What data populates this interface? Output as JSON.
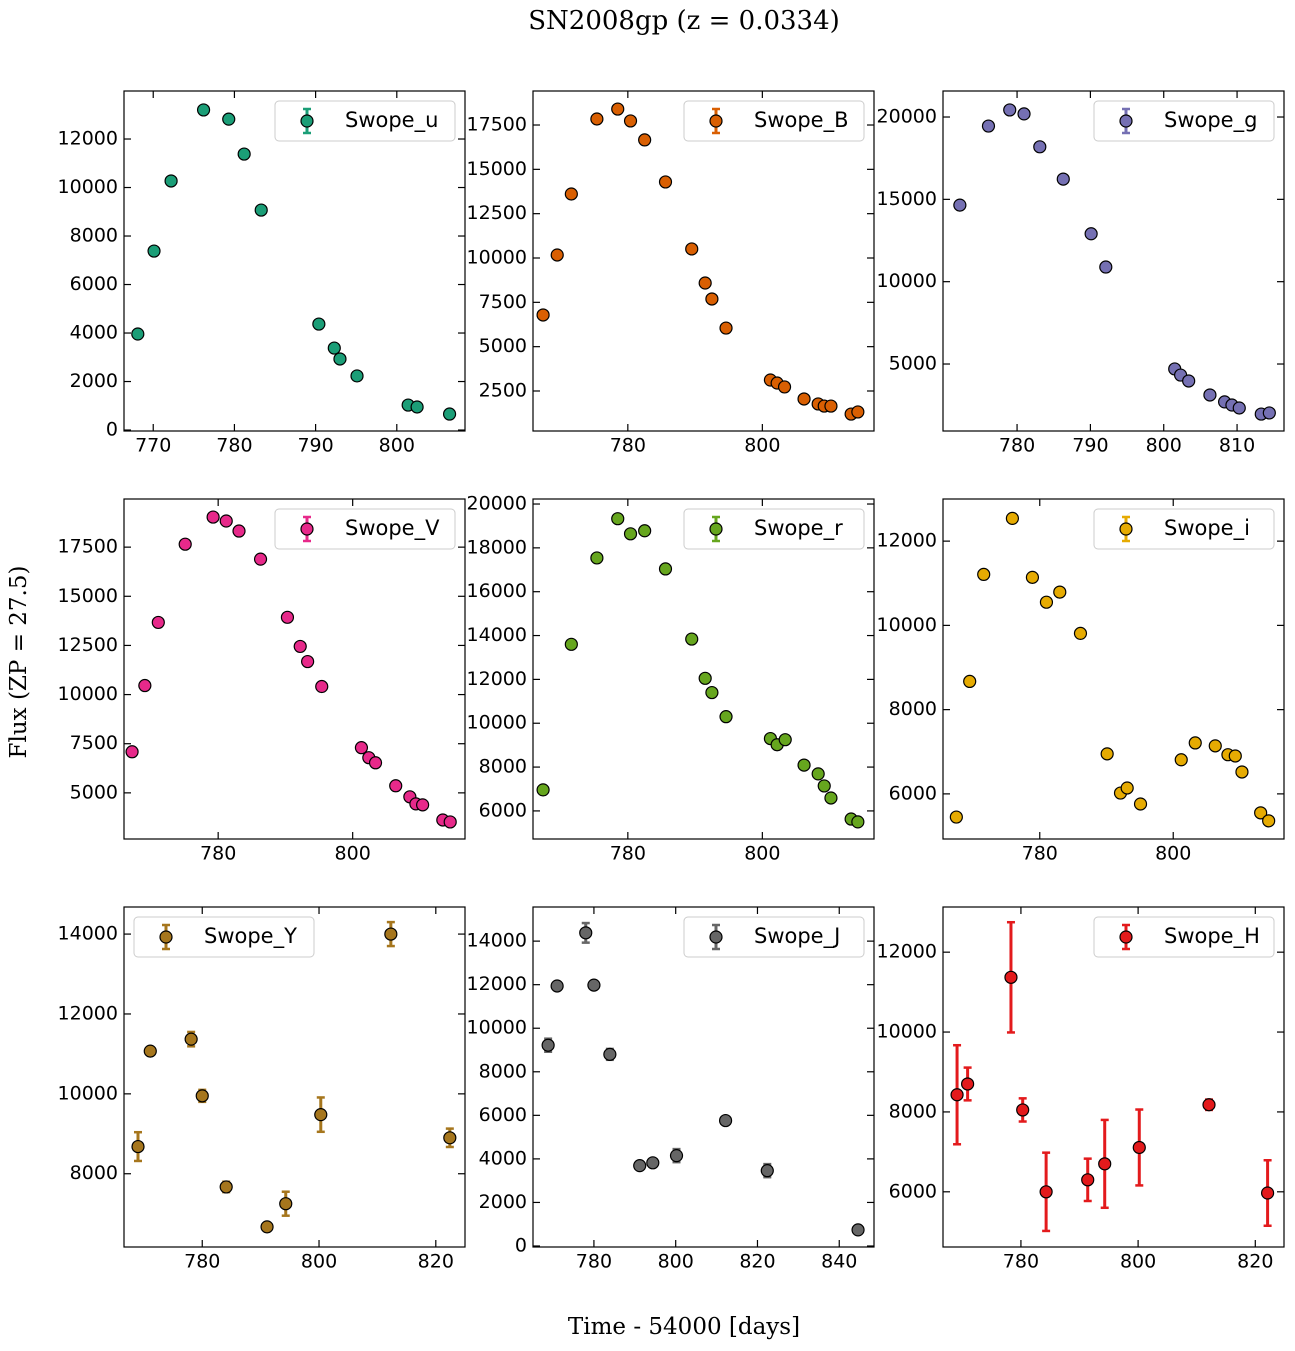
{
  "title": "SN2008gp (z = 0.0334)",
  "xlabel": "Time - 54000 [days]",
  "ylabel": "Flux (ZP = 27.5)",
  "chart_data": [
    {
      "type": "scatter",
      "xlim": [
        766.4,
        808.4
      ],
      "ylim": [
        -40,
        13980
      ],
      "xticks": [
        770,
        780,
        790,
        800
      ],
      "yticks": [
        0,
        2000,
        4000,
        6000,
        8000,
        10000,
        12000
      ],
      "legend": "upper right",
      "series": [
        {
          "name": "Swope_u",
          "color": "#1b9e77",
          "x": [
            768.1,
            770.1,
            772.2,
            776.2,
            779.3,
            781.2,
            783.3,
            790.4,
            792.3,
            793.0,
            795.1,
            801.4,
            802.5,
            806.5
          ],
          "values": [
            3960,
            7380,
            10270,
            13200,
            12820,
            11380,
            9070,
            4370,
            3380,
            2930,
            2230,
            1030,
            950,
            660
          ]
        }
      ]
    },
    {
      "type": "scatter",
      "xlim": [
        765.9,
        816.6
      ],
      "ylim": [
        244,
        19418
      ],
      "xticks": [
        780,
        800
      ],
      "yticks": [
        2500,
        5000,
        7500,
        10000,
        12500,
        15000,
        17500
      ],
      "legend": "upper right",
      "series": [
        {
          "name": "Swope_B",
          "color": "#d95f02",
          "x": [
            767.4,
            769.5,
            771.6,
            775.4,
            778.5,
            780.4,
            782.5,
            785.6,
            789.5,
            791.5,
            792.5,
            794.6,
            801.2,
            802.2,
            803.3,
            806.2,
            808.3,
            809.2,
            810.2,
            813.2,
            814.2
          ],
          "values": [
            6787,
            10170,
            13610,
            17840,
            18400,
            17730,
            16660,
            14290,
            10510,
            8590,
            7690,
            6050,
            3120,
            2950,
            2730,
            2050,
            1770,
            1650,
            1650,
            1200,
            1320
          ]
        }
      ]
    },
    {
      "type": "scatter",
      "xlim": [
        769.9,
        816.4
      ],
      "ylim": [
        932,
        21580
      ],
      "xticks": [
        780,
        790,
        800,
        810
      ],
      "yticks": [
        5000,
        10000,
        15000,
        20000
      ],
      "legend": "upper right",
      "series": [
        {
          "name": "Swope_g",
          "color": "#7570b3",
          "x": [
            772.2,
            776.1,
            779.0,
            780.95,
            783.1,
            786.3,
            790.1,
            792.1,
            801.5,
            802.3,
            803.4,
            806.3,
            808.3,
            809.3,
            810.3,
            813.3,
            814.4
          ],
          "values": [
            14650,
            19450,
            20430,
            20190,
            18190,
            16230,
            12910,
            10890,
            4700,
            4330,
            3970,
            3120,
            2700,
            2510,
            2330,
            1960,
            2030
          ]
        }
      ]
    },
    {
      "type": "scatter",
      "xlim": [
        766.0,
        816.7
      ],
      "ylim": [
        2653,
        19949
      ],
      "xticks": [
        780,
        800
      ],
      "yticks": [
        5000,
        7500,
        10000,
        12500,
        15000,
        17500
      ],
      "legend": "upper right",
      "series": [
        {
          "name": "Swope_V",
          "color": "#e7298a",
          "x": [
            767.2,
            769.1,
            771.1,
            775.1,
            779.25,
            781.2,
            783.1,
            786.3,
            790.3,
            792.2,
            793.3,
            795.4,
            801.3,
            802.4,
            803.4,
            806.4,
            808.5,
            809.4,
            810.4,
            813.4,
            814.5
          ],
          "values": [
            7090,
            10460,
            13670,
            17650,
            19030,
            18830,
            18320,
            16890,
            13930,
            12450,
            11680,
            10410,
            7300,
            6790,
            6530,
            5360,
            4800,
            4440,
            4390,
            3620,
            3520
          ]
        }
      ]
    },
    {
      "type": "scatter",
      "xlim": [
        765.9,
        816.6
      ],
      "ylim": [
        4719,
        20229
      ],
      "xticks": [
        780,
        800
      ],
      "yticks": [
        6000,
        8000,
        10000,
        12000,
        14000,
        16000,
        18000,
        20000
      ],
      "legend": "upper right",
      "series": [
        {
          "name": "Swope_r",
          "color": "#66a61e",
          "x": [
            767.4,
            771.6,
            775.4,
            778.5,
            780.4,
            782.5,
            785.6,
            789.5,
            791.5,
            792.5,
            794.6,
            801.2,
            802.2,
            803.4,
            806.2,
            808.3,
            809.2,
            810.2,
            813.2,
            814.2
          ],
          "values": [
            6960,
            13600,
            17540,
            19330,
            18640,
            18780,
            17040,
            13840,
            12050,
            11400,
            10300,
            9300,
            9020,
            9250,
            8090,
            7690,
            7140,
            6590,
            5630,
            5500
          ]
        }
      ]
    },
    {
      "type": "scatter",
      "xlim": [
        765.5,
        816.6
      ],
      "ylim": [
        4929,
        13000
      ],
      "xticks": [
        780,
        800
      ],
      "yticks": [
        6000,
        8000,
        10000,
        12000
      ],
      "legend": "upper right",
      "series": [
        {
          "name": "Swope_i",
          "color": "#e6ab02",
          "x": [
            767.5,
            769.5,
            771.6,
            775.9,
            778.9,
            781.0,
            783.0,
            786.1,
            790.1,
            792.1,
            793.1,
            795.1,
            801.2,
            803.3,
            806.3,
            808.2,
            809.3,
            810.3,
            813.1,
            814.3
          ],
          "values": [
            5450,
            8670,
            11210,
            12540,
            11140,
            10550,
            10790,
            9810,
            6950,
            6020,
            6140,
            5760,
            6810,
            7210,
            7140,
            6930,
            6900,
            6520,
            5550,
            5360
          ]
        }
      ]
    },
    {
      "type": "scatter",
      "xlim": [
        766.6,
        825.0
      ],
      "ylim": [
        6166,
        14678
      ],
      "xticks": [
        780,
        800,
        820
      ],
      "yticks": [
        8000,
        10000,
        12000,
        14000
      ],
      "legend": "upper left",
      "series": [
        {
          "name": "Swope_Y",
          "color": "#a6761d",
          "x": [
            769.0,
            771.1,
            778.1,
            780.0,
            784.1,
            791.1,
            794.3,
            800.3,
            812.3,
            822.4
          ],
          "values": [
            8680,
            11070,
            11370,
            9950,
            7670,
            6670,
            7250,
            9480,
            14000,
            8900
          ],
          "errors": [
            360,
            50,
            180,
            150,
            130,
            50,
            300,
            430,
            300,
            230
          ]
        }
      ]
    },
    {
      "type": "scatter",
      "xlim": [
        765.1,
        848.5
      ],
      "ylim": [
        -46,
        15567
      ],
      "xticks": [
        780,
        800,
        820,
        840
      ],
      "yticks": [
        0,
        2000,
        4000,
        6000,
        8000,
        10000,
        12000,
        14000
      ],
      "legend": "upper right",
      "series": [
        {
          "name": "Swope_J",
          "color": "#666666",
          "x": [
            768.8,
            771.0,
            778.0,
            780.0,
            783.9,
            791.2,
            794.4,
            800.2,
            812.2,
            822.4,
            844.6
          ],
          "values": [
            9220,
            11940,
            14380,
            11980,
            8800,
            3690,
            3820,
            4150,
            5760,
            3460,
            740
          ],
          "errors": [
            300,
            80,
            450,
            80,
            250,
            80,
            100,
            300,
            80,
            300,
            50
          ]
        }
      ]
    },
    {
      "type": "scatter",
      "xlim": [
        766.7,
        824.9
      ],
      "ylim": [
        4618,
        13131
      ],
      "xticks": [
        780,
        800,
        820
      ],
      "yticks": [
        6000,
        8000,
        10000,
        12000
      ],
      "legend": "upper right",
      "series": [
        {
          "name": "Swope_H",
          "color": "#e31a1c",
          "x": [
            769.1,
            770.9,
            778.3,
            780.3,
            784.3,
            791.4,
            794.3,
            800.2,
            812.1,
            822.1
          ],
          "values": [
            8430,
            8700,
            11370,
            8050,
            6000,
            6300,
            6700,
            7110,
            8180,
            5970
          ],
          "errors": [
            1240,
            410,
            1380,
            290,
            980,
            530,
            1100,
            950,
            130,
            820
          ]
        }
      ]
    }
  ]
}
